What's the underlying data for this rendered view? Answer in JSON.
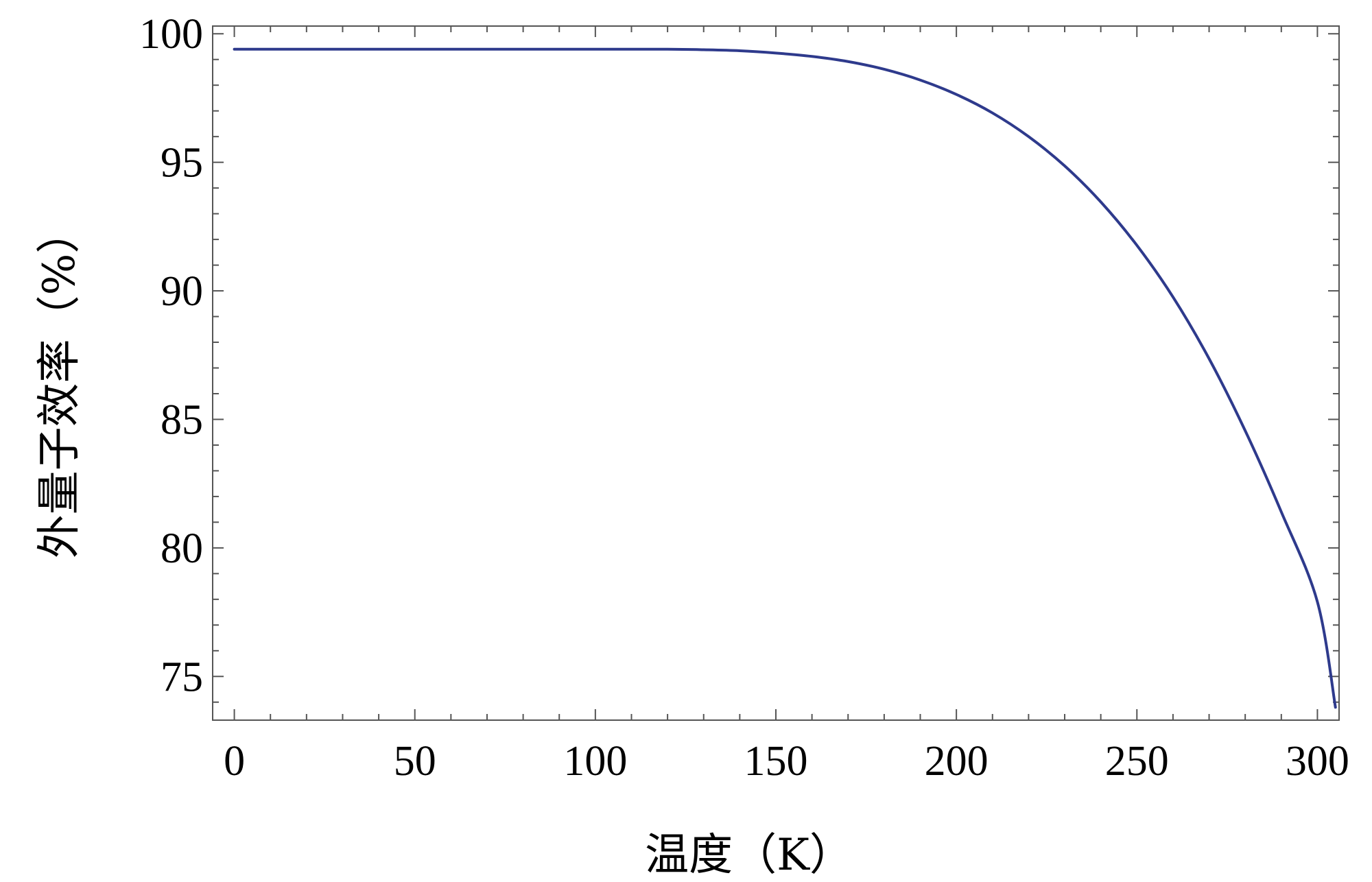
{
  "chart_data": {
    "type": "line",
    "title": "",
    "xlabel": "温度（K）",
    "ylabel": "外量子效率（%）",
    "xlim": [
      -6,
      306
    ],
    "ylim": [
      73.3,
      100.3
    ],
    "x_ticks": [
      0,
      50,
      100,
      150,
      200,
      250,
      300
    ],
    "y_ticks": [
      75,
      80,
      85,
      90,
      95,
      100
    ],
    "x_tick_labels": [
      "0",
      "50",
      "100",
      "150",
      "200",
      "250",
      "300"
    ],
    "y_tick_labels": [
      "75",
      "80",
      "85",
      "90",
      "95",
      "100"
    ],
    "x_minor_step": 10,
    "y_minor_step": 1,
    "grid": false,
    "series": [
      {
        "color": "#2e3a8c",
        "points": [
          [
            0,
            99.4
          ],
          [
            50,
            99.4
          ],
          [
            100,
            99.4
          ],
          [
            120,
            99.4
          ],
          [
            130,
            99.38
          ],
          [
            140,
            99.34
          ],
          [
            150,
            99.25
          ],
          [
            160,
            99.12
          ],
          [
            170,
            98.92
          ],
          [
            180,
            98.62
          ],
          [
            190,
            98.2
          ],
          [
            200,
            97.64
          ],
          [
            210,
            96.92
          ],
          [
            220,
            96.0
          ],
          [
            230,
            94.86
          ],
          [
            240,
            93.46
          ],
          [
            250,
            91.77
          ],
          [
            260,
            89.76
          ],
          [
            270,
            87.36
          ],
          [
            280,
            84.56
          ],
          [
            290,
            81.4
          ],
          [
            300,
            77.9
          ],
          [
            305,
            73.8
          ]
        ]
      }
    ]
  }
}
